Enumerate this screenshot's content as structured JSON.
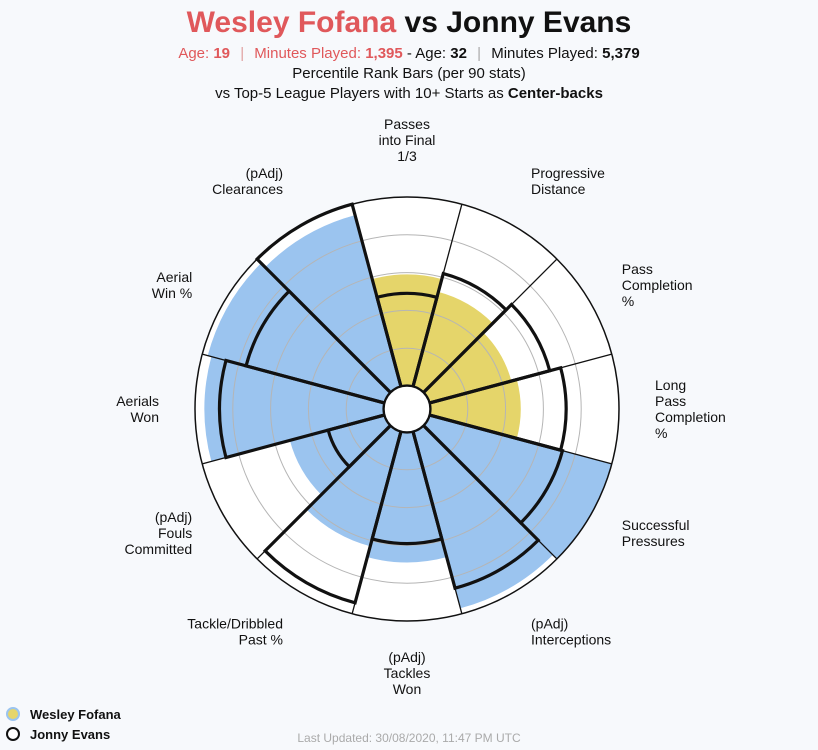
{
  "header": {
    "player1": "Wesley Fofana",
    "vs": "vs",
    "player2": "Jonny Evans",
    "age_label_1": "Age:",
    "age_1": "19",
    "minutes_label_1": "Minutes Played:",
    "minutes_1": "1,395",
    "age_label_2": "- Age:",
    "age_2": "32",
    "minutes_label_2": "Minutes Played:",
    "minutes_2": "5,379",
    "subtitle_1": "Percentile Rank Bars (per 90 stats)",
    "subtitle_2_prefix": "vs Top-5 League Players with 10+ Starts as",
    "subtitle_2_bold": "Center-backs"
  },
  "legend": {
    "player1": "Wesley Fofana",
    "player2": "Jonny Evans"
  },
  "footer": "Last Updated: 30/08/2020, 11:47 PM UTC",
  "colors": {
    "attack": "#e5d56a",
    "defense": "#9bc4ef",
    "title_red": "#e0585b",
    "outline": "#111111"
  },
  "chart_data": {
    "type": "polar-bar",
    "scale": [
      0,
      100
    ],
    "categories": [
      {
        "label": [
          "Passes",
          "into Final",
          "1/3"
        ],
        "group": "attack",
        "player1": 59,
        "player2": 49
      },
      {
        "label": [
          "Progressive",
          "Distance"
        ],
        "group": "attack",
        "player1": 52,
        "player2": 62
      },
      {
        "label": [
          "Pass",
          "Completion",
          "%"
        ],
        "group": "attack",
        "player1": 45,
        "player2": 66
      },
      {
        "label": [
          "Long",
          "Pass",
          "Completion",
          "%"
        ],
        "group": "attack",
        "player1": 48,
        "player2": 72
      },
      {
        "label": [
          "Successful",
          "Pressures"
        ],
        "group": "defense",
        "player1": 100,
        "player2": 73
      },
      {
        "label": [
          "(pAdj)",
          "Interceptions"
        ],
        "group": "defense",
        "player1": 97,
        "player2": 86
      },
      {
        "label": [
          "(pAdj)",
          "Tackles",
          "Won"
        ],
        "group": "defense",
        "player1": 69,
        "player2": 59
      },
      {
        "label": [
          "Tackle/Dribbled",
          "Past %"
        ],
        "group": "defense",
        "player1": 63,
        "player2": 94
      },
      {
        "label": [
          "(pAdj)",
          "Fouls",
          "Committed"
        ],
        "group": "defense",
        "player1": 52,
        "player2": 31
      },
      {
        "label": [
          "Aerials",
          "Won"
        ],
        "group": "defense",
        "player1": 95,
        "player2": 87
      },
      {
        "label": [
          "Aerial",
          "Win %"
        ],
        "group": "defense",
        "player1": 97,
        "player2": 76
      },
      {
        "label": [
          "(pAdj)",
          "Clearances"
        ],
        "group": "defense",
        "player1": 94,
        "player2": 100
      }
    ]
  }
}
